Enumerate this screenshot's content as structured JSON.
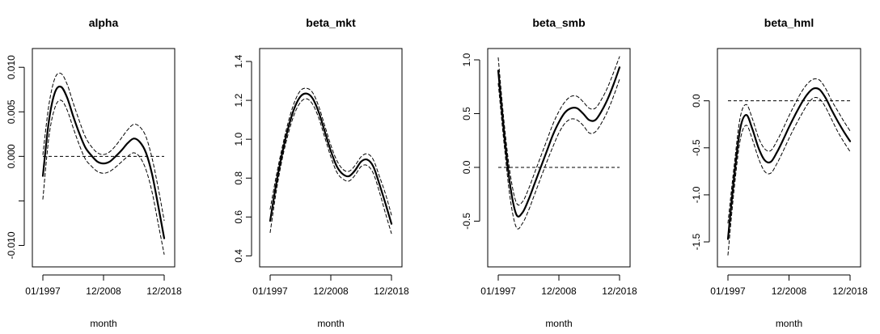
{
  "chart_data": [
    {
      "type": "line",
      "title": "alpha",
      "xlabel": "month",
      "ylabel": "",
      "xlim": [
        0,
        1
      ],
      "ylim": [
        -0.0115,
        0.0112
      ],
      "x_ticks": [
        {
          "value": 0.0,
          "label": "01/1997"
        },
        {
          "value": 0.5,
          "label": "12/2008"
        },
        {
          "value": 1.0,
          "label": "12/2018"
        }
      ],
      "y_ticks": [
        {
          "value": -0.01,
          "label": "-0.010"
        },
        {
          "value": -0.005,
          "label": ""
        },
        {
          "value": 0.0,
          "label": "0.000"
        },
        {
          "value": 0.005,
          "label": "0.005"
        },
        {
          "value": 0.01,
          "label": "0.010"
        }
      ],
      "reference_line": 0.0,
      "x": [
        0.0,
        0.05,
        0.1,
        0.15,
        0.2,
        0.25,
        0.3,
        0.35,
        0.4,
        0.45,
        0.5,
        0.55,
        0.6,
        0.65,
        0.7,
        0.75,
        0.8,
        0.85,
        0.9,
        0.95,
        1.0
      ],
      "series": [
        {
          "role": "estimate",
          "values": [
            -0.0022,
            0.004,
            0.0072,
            0.0078,
            0.0066,
            0.0045,
            0.0026,
            0.001,
            0.0001,
            -0.0006,
            -0.0008,
            -0.0006,
            0.0,
            0.0007,
            0.0015,
            0.002,
            0.0016,
            0.0004,
            -0.002,
            -0.0055,
            -0.0092
          ]
        },
        {
          "role": "upper",
          "values": [
            0.0002,
            0.0058,
            0.0088,
            0.0093,
            0.0081,
            0.006,
            0.004,
            0.0022,
            0.0011,
            0.0004,
            0.0002,
            0.0005,
            0.0012,
            0.0021,
            0.003,
            0.0036,
            0.0033,
            0.0022,
            -0.0002,
            -0.0035,
            -0.0072
          ]
        },
        {
          "role": "lower",
          "values": [
            -0.0048,
            0.0022,
            0.0055,
            0.0063,
            0.0052,
            0.0032,
            0.0013,
            -0.0003,
            -0.0011,
            -0.0017,
            -0.0019,
            -0.0017,
            -0.0012,
            -0.0006,
            0.0,
            0.0004,
            -0.0001,
            -0.0015,
            -0.004,
            -0.0075,
            -0.011
          ]
        }
      ]
    },
    {
      "type": "line",
      "title": "beta_mkt",
      "xlabel": "month",
      "ylabel": "",
      "xlim": [
        0,
        1
      ],
      "ylim": [
        0.385,
        1.425
      ],
      "x_ticks": [
        {
          "value": 0.0,
          "label": "01/1997"
        },
        {
          "value": 0.5,
          "label": "12/2008"
        },
        {
          "value": 1.0,
          "label": "12/2018"
        }
      ],
      "y_ticks": [
        {
          "value": 0.4,
          "label": "0.4"
        },
        {
          "value": 0.6,
          "label": "0.6"
        },
        {
          "value": 0.8,
          "label": "0.8"
        },
        {
          "value": 1.0,
          "label": "1.0"
        },
        {
          "value": 1.2,
          "label": "1.2"
        },
        {
          "value": 1.4,
          "label": "1.4"
        }
      ],
      "x": [
        0.0,
        0.05,
        0.1,
        0.15,
        0.2,
        0.25,
        0.3,
        0.35,
        0.4,
        0.45,
        0.5,
        0.55,
        0.6,
        0.65,
        0.7,
        0.75,
        0.8,
        0.85,
        0.9,
        0.95,
        1.0
      ],
      "series": [
        {
          "role": "estimate",
          "values": [
            0.58,
            0.77,
            0.93,
            1.06,
            1.16,
            1.22,
            1.235,
            1.21,
            1.14,
            1.04,
            0.94,
            0.86,
            0.82,
            0.81,
            0.84,
            0.885,
            0.895,
            0.86,
            0.77,
            0.67,
            0.565
          ]
        },
        {
          "role": "upper",
          "values": [
            0.64,
            0.81,
            0.96,
            1.09,
            1.19,
            1.25,
            1.262,
            1.24,
            1.17,
            1.07,
            0.97,
            0.89,
            0.845,
            0.835,
            0.865,
            0.91,
            0.925,
            0.895,
            0.81,
            0.72,
            0.61
          ]
        },
        {
          "role": "lower",
          "values": [
            0.52,
            0.73,
            0.9,
            1.03,
            1.13,
            1.19,
            1.208,
            1.18,
            1.11,
            1.01,
            0.91,
            0.83,
            0.795,
            0.785,
            0.815,
            0.86,
            0.865,
            0.825,
            0.73,
            0.62,
            0.515
          ]
        }
      ]
    },
    {
      "type": "line",
      "title": "beta_smb",
      "xlabel": "month",
      "ylabel": "",
      "xlim": [
        0,
        1
      ],
      "ylim": [
        -0.85,
        1.03
      ],
      "x_ticks": [
        {
          "value": 0.0,
          "label": "01/1997"
        },
        {
          "value": 0.5,
          "label": "12/2008"
        },
        {
          "value": 1.0,
          "label": "12/2018"
        }
      ],
      "y_ticks": [
        {
          "value": -0.5,
          "label": "-0.5"
        },
        {
          "value": 0.0,
          "label": "0.0"
        },
        {
          "value": 0.5,
          "label": "0.5"
        },
        {
          "value": 1.0,
          "label": "1.0"
        }
      ],
      "reference_line": 0.0,
      "x": [
        0.0,
        0.05,
        0.1,
        0.15,
        0.2,
        0.25,
        0.3,
        0.35,
        0.4,
        0.45,
        0.5,
        0.55,
        0.6,
        0.65,
        0.7,
        0.75,
        0.8,
        0.85,
        0.9,
        0.95,
        1.0
      ],
      "series": [
        {
          "role": "estimate",
          "values": [
            0.9,
            0.3,
            -0.18,
            -0.44,
            -0.42,
            -0.3,
            -0.15,
            0.0,
            0.15,
            0.3,
            0.42,
            0.51,
            0.55,
            0.55,
            0.5,
            0.44,
            0.44,
            0.52,
            0.63,
            0.77,
            0.93
          ]
        },
        {
          "role": "upper",
          "values": [
            1.02,
            0.4,
            -0.07,
            -0.33,
            -0.32,
            -0.2,
            -0.05,
            0.1,
            0.25,
            0.4,
            0.52,
            0.61,
            0.66,
            0.66,
            0.61,
            0.55,
            0.55,
            0.63,
            0.74,
            0.88,
            1.03
          ]
        },
        {
          "role": "lower",
          "values": [
            0.78,
            0.2,
            -0.3,
            -0.56,
            -0.52,
            -0.4,
            -0.25,
            -0.1,
            0.05,
            0.19,
            0.32,
            0.41,
            0.45,
            0.44,
            0.39,
            0.32,
            0.33,
            0.41,
            0.52,
            0.66,
            0.82
          ]
        }
      ]
    },
    {
      "type": "line",
      "title": "beta_hml",
      "xlabel": "month",
      "ylabel": "",
      "xlim": [
        0,
        1
      ],
      "ylim": [
        -1.68,
        0.47
      ],
      "x_ticks": [
        {
          "value": 0.0,
          "label": "01/1997"
        },
        {
          "value": 0.5,
          "label": "12/2008"
        },
        {
          "value": 1.0,
          "label": "12/2018"
        }
      ],
      "y_ticks": [
        {
          "value": -1.5,
          "label": "-1.5"
        },
        {
          "value": -1.0,
          "label": "-1.0"
        },
        {
          "value": -0.5,
          "label": "-0.5"
        },
        {
          "value": 0.0,
          "label": "0.0"
        }
      ],
      "reference_line": 0.0,
      "x": [
        0.0,
        0.05,
        0.1,
        0.15,
        0.2,
        0.25,
        0.3,
        0.35,
        0.4,
        0.45,
        0.5,
        0.55,
        0.6,
        0.65,
        0.7,
        0.75,
        0.8,
        0.85,
        0.9,
        0.95,
        1.0
      ],
      "series": [
        {
          "role": "estimate",
          "values": [
            -1.47,
            -0.82,
            -0.3,
            -0.15,
            -0.3,
            -0.5,
            -0.63,
            -0.65,
            -0.55,
            -0.42,
            -0.28,
            -0.15,
            -0.03,
            0.07,
            0.13,
            0.12,
            0.03,
            -0.1,
            -0.22,
            -0.33,
            -0.43
          ]
        },
        {
          "role": "upper",
          "values": [
            -1.3,
            -0.7,
            -0.18,
            -0.04,
            -0.19,
            -0.39,
            -0.51,
            -0.53,
            -0.43,
            -0.3,
            -0.16,
            -0.03,
            0.09,
            0.18,
            0.23,
            0.22,
            0.13,
            0.0,
            -0.11,
            -0.22,
            -0.32
          ]
        },
        {
          "role": "lower",
          "values": [
            -1.64,
            -0.95,
            -0.42,
            -0.26,
            -0.41,
            -0.61,
            -0.75,
            -0.77,
            -0.67,
            -0.54,
            -0.4,
            -0.27,
            -0.15,
            -0.04,
            0.03,
            0.02,
            -0.07,
            -0.2,
            -0.33,
            -0.44,
            -0.54
          ]
        }
      ]
    }
  ]
}
